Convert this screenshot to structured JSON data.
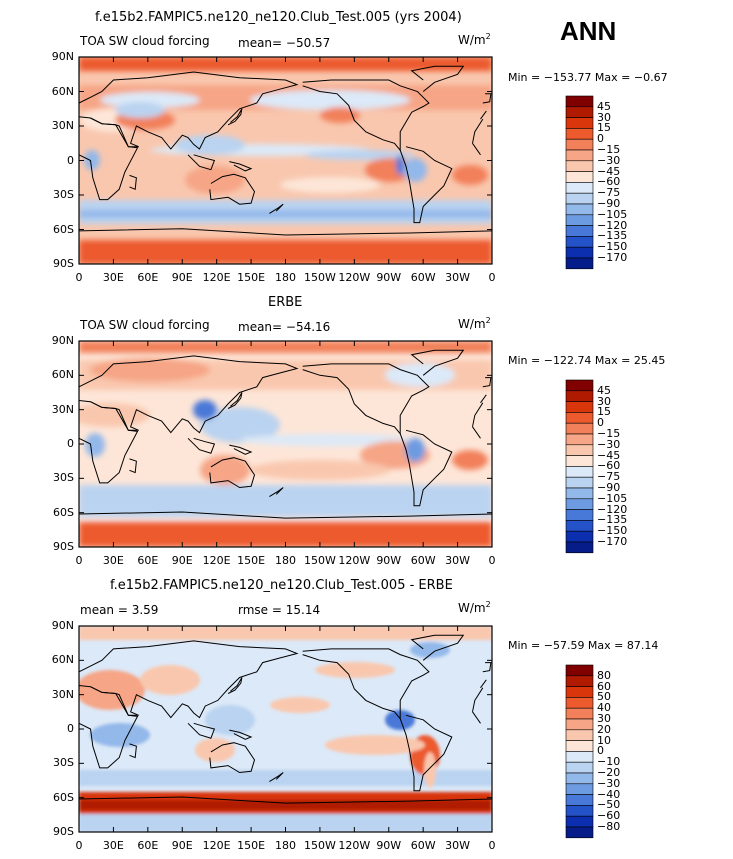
{
  "season": "ANN",
  "units": "W/m",
  "units_exp": "2",
  "x_ticks": [
    "0",
    "30E",
    "60E",
    "90E",
    "120E",
    "150E",
    "180",
    "150W",
    "120W",
    "90W",
    "60W",
    "30W",
    "0"
  ],
  "y_ticks": [
    "90N",
    "60N",
    "30N",
    "0",
    "30S",
    "60S",
    "90S"
  ],
  "panels": [
    {
      "title": "f.e15b2.FAMPIC5.ne120_ne120.Club_Test.005 (yrs 2004)",
      "field_label": "TOA SW cloud forcing",
      "mean_text": "mean= −50.57",
      "rmse_text": "",
      "min_max": "Min = −153.77  Max =  −0.67",
      "colorbar": [
        "45",
        "30",
        "15",
        "0",
        "−15",
        "−30",
        "−45",
        "−60",
        "−75",
        "−90",
        "−105",
        "−120",
        "−135",
        "−150",
        "−170"
      ]
    },
    {
      "title": "ERBE",
      "field_label": "TOA SW cloud forcing",
      "mean_text": "mean= −54.16",
      "rmse_text": "",
      "min_max": "Min = −122.74  Max =  25.45",
      "colorbar": [
        "45",
        "30",
        "15",
        "0",
        "−15",
        "−30",
        "−45",
        "−60",
        "−75",
        "−90",
        "−105",
        "−120",
        "−135",
        "−150",
        "−170"
      ]
    },
    {
      "title": "f.e15b2.FAMPIC5.ne120_ne120.Club_Test.005 - ERBE",
      "field_label": "",
      "mean_text": "mean =    3.59",
      "rmse_text": "rmse =  15.14",
      "min_max": "Min = −57.59  Max =  87.14",
      "colorbar": [
        "80",
        "60",
        "50",
        "40",
        "30",
        "20",
        "10",
        "0",
        "−10",
        "−20",
        "−30",
        "−40",
        "−50",
        "−60",
        "−80"
      ]
    }
  ],
  "colors": {
    "ramp": [
      "#800000",
      "#b01a00",
      "#d9360c",
      "#ec5a2e",
      "#f2805a",
      "#f6a586",
      "#f9c7ae",
      "#fde6d8",
      "#dce9f8",
      "#bad3f0",
      "#93b8ea",
      "#6d9be2",
      "#4878d8",
      "#2452c8",
      "#0c2fb0",
      "#061c88"
    ]
  }
}
